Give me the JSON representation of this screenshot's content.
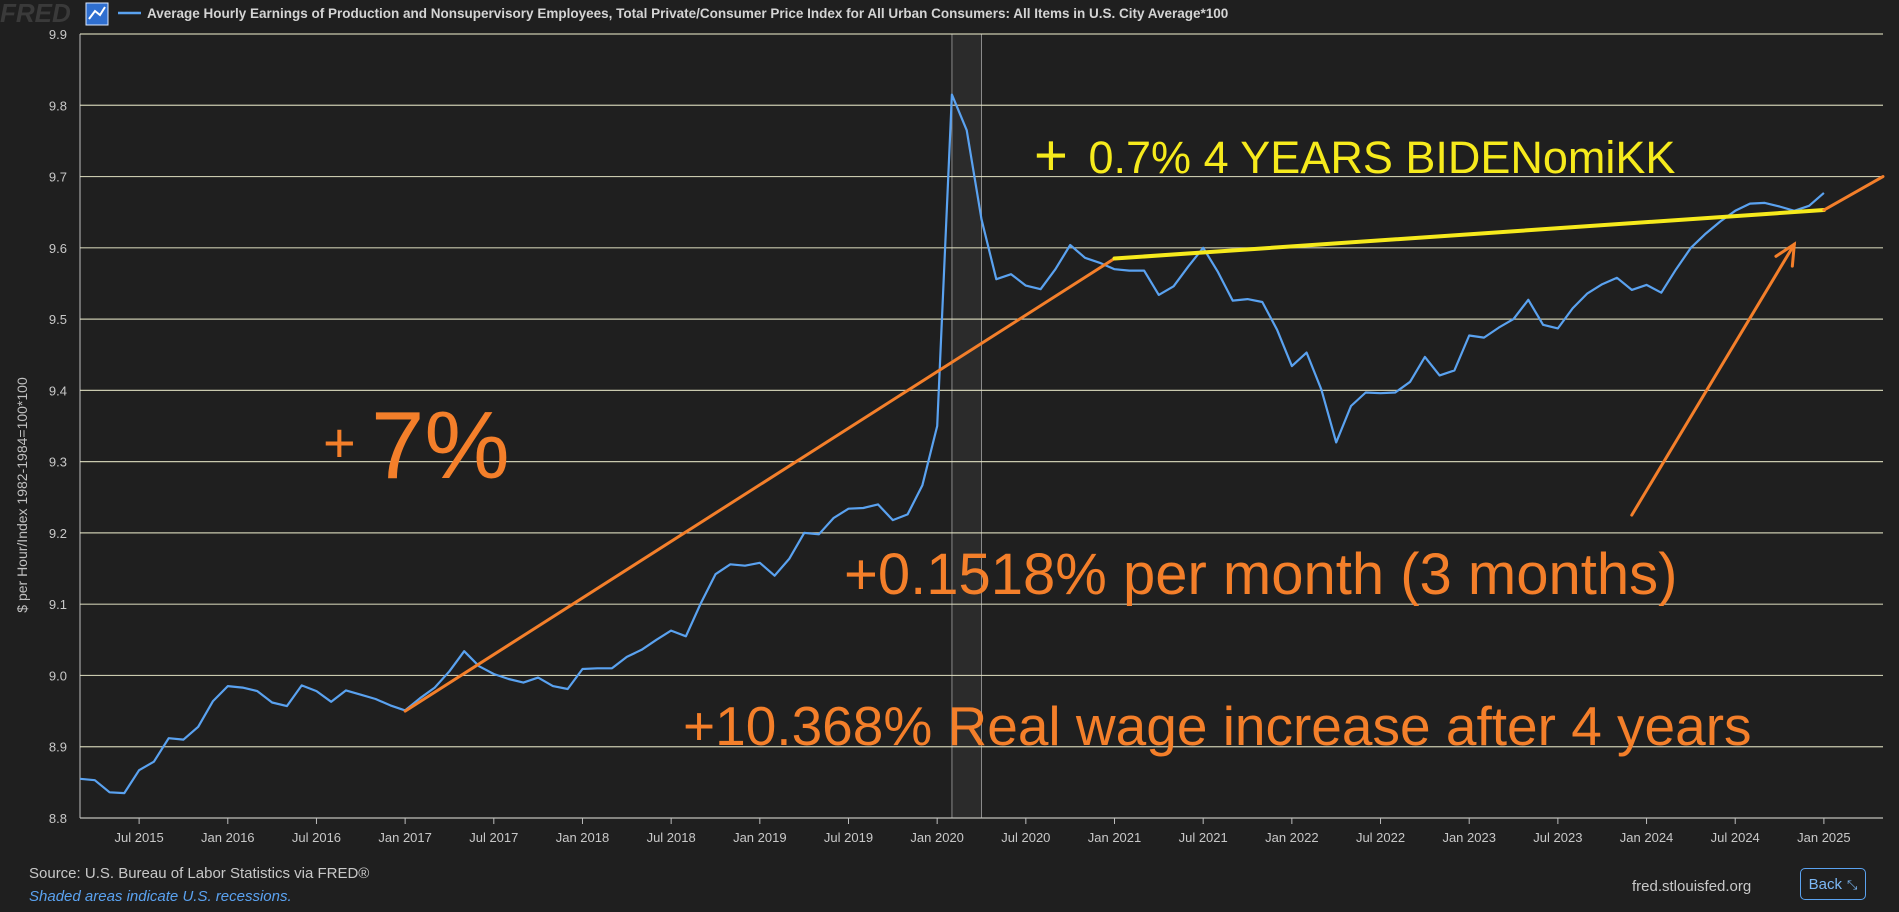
{
  "header": {
    "logo_text": "FRED",
    "logo_icon": "chart-line-icon",
    "series_title": "Average Hourly Earnings of Production and Nonsupervisory Employees, Total Private/Consumer Price Index for All Urban Consumers: All Items in U.S. City Average*100"
  },
  "footer": {
    "source": "Source: U.S. Bureau of Labor Statistics via FRED®",
    "recession_note": "Shaded areas indicate U.S. recessions.",
    "site": "fred.stlouisfed.org",
    "back_label": "Back",
    "back_icon": "collapse-icon"
  },
  "colors": {
    "background": "#1f1f1f",
    "series": "#5aa2f0",
    "grid": "#e8e8c8",
    "orange_annotation": "#f47f2a",
    "yellow_annotation": "#f6ea1c"
  },
  "chart_data": {
    "type": "line",
    "ylabel": "$ per Hour/Index 1982-1984=100*100",
    "xlabel": "",
    "ylim": [
      8.8,
      9.9
    ],
    "xlim": [
      "2015-03",
      "2025-05"
    ],
    "y_ticks": [
      "8.8",
      "8.9",
      "9.0",
      "9.1",
      "9.2",
      "9.3",
      "9.4",
      "9.5",
      "9.6",
      "9.7",
      "9.8",
      "9.9"
    ],
    "x_ticks": [
      {
        "label": "Jul 2015",
        "date": "2015-07"
      },
      {
        "label": "Jan 2016",
        "date": "2016-01"
      },
      {
        "label": "Jul 2016",
        "date": "2016-07"
      },
      {
        "label": "Jan 2017",
        "date": "2017-01"
      },
      {
        "label": "Jul 2017",
        "date": "2017-07"
      },
      {
        "label": "Jan 2018",
        "date": "2018-01"
      },
      {
        "label": "Jul 2018",
        "date": "2018-07"
      },
      {
        "label": "Jan 2019",
        "date": "2019-01"
      },
      {
        "label": "Jul 2019",
        "date": "2019-07"
      },
      {
        "label": "Jan 2020",
        "date": "2020-01"
      },
      {
        "label": "Jul 2020",
        "date": "2020-07"
      },
      {
        "label": "Jan 2021",
        "date": "2021-01"
      },
      {
        "label": "Jul 2021",
        "date": "2021-07"
      },
      {
        "label": "Jan 2022",
        "date": "2022-01"
      },
      {
        "label": "Jul 2022",
        "date": "2022-07"
      },
      {
        "label": "Jan 2023",
        "date": "2023-01"
      },
      {
        "label": "Jul 2023",
        "date": "2023-07"
      },
      {
        "label": "Jan 2024",
        "date": "2024-01"
      },
      {
        "label": "Jul 2024",
        "date": "2024-07"
      },
      {
        "label": "Jan 2025",
        "date": "2025-01"
      }
    ],
    "recession": {
      "start": "2020-02",
      "end": "2020-04"
    },
    "grid": true,
    "series": [
      {
        "x": [
          "2015-03",
          "2015-04",
          "2015-05",
          "2015-06",
          "2015-07",
          "2015-08",
          "2015-09",
          "2015-10",
          "2015-11",
          "2015-12",
          "2016-01",
          "2016-02",
          "2016-03",
          "2016-04",
          "2016-05",
          "2016-06",
          "2016-07",
          "2016-08",
          "2016-09",
          "2016-10",
          "2016-11",
          "2016-12",
          "2017-01",
          "2017-02",
          "2017-03",
          "2017-04",
          "2017-05",
          "2017-06",
          "2017-07",
          "2017-08",
          "2017-09",
          "2017-10",
          "2017-11",
          "2017-12",
          "2018-01",
          "2018-02",
          "2018-03",
          "2018-04",
          "2018-05",
          "2018-06",
          "2018-07",
          "2018-08",
          "2018-09",
          "2018-10",
          "2018-11",
          "2018-12",
          "2019-01",
          "2019-02",
          "2019-03",
          "2019-04",
          "2019-05",
          "2019-06",
          "2019-07",
          "2019-08",
          "2019-09",
          "2019-10",
          "2019-11",
          "2019-12",
          "2020-01",
          "2020-02",
          "2020-03",
          "2020-04",
          "2020-05",
          "2020-06",
          "2020-07",
          "2020-08",
          "2020-09",
          "2020-10",
          "2020-11",
          "2020-12",
          "2021-01",
          "2021-02",
          "2021-03",
          "2021-04",
          "2021-05",
          "2021-06",
          "2021-07",
          "2021-08",
          "2021-09",
          "2021-10",
          "2021-11",
          "2021-12",
          "2022-01",
          "2022-02",
          "2022-03",
          "2022-04",
          "2022-05",
          "2022-06",
          "2022-07",
          "2022-08",
          "2022-09",
          "2022-10",
          "2022-11",
          "2022-12",
          "2023-01",
          "2023-02",
          "2023-03",
          "2023-04",
          "2023-05",
          "2023-06",
          "2023-07",
          "2023-08",
          "2023-09",
          "2023-10",
          "2023-11",
          "2023-12",
          "2024-01",
          "2024-02",
          "2024-03",
          "2024-04",
          "2024-05",
          "2024-06",
          "2024-07",
          "2024-08",
          "2024-09",
          "2024-10",
          "2024-11",
          "2024-12",
          "2025-01"
        ],
        "values": [
          8.855,
          8.853,
          8.836,
          8.835,
          8.867,
          8.879,
          8.912,
          8.91,
          8.928,
          8.964,
          8.985,
          8.983,
          8.978,
          8.962,
          8.957,
          8.986,
          8.978,
          8.963,
          8.979,
          8.973,
          8.967,
          8.958,
          8.951,
          8.968,
          8.983,
          9.006,
          9.034,
          9.013,
          9.002,
          8.995,
          8.99,
          8.997,
          8.985,
          8.981,
          9.009,
          9.01,
          9.01,
          9.026,
          9.036,
          9.05,
          9.063,
          9.055,
          9.101,
          9.142,
          9.156,
          9.154,
          9.158,
          9.14,
          9.164,
          9.2,
          9.198,
          9.221,
          9.234,
          9.235,
          9.24,
          9.218,
          9.226,
          9.267,
          9.35,
          9.815,
          9.765,
          9.64,
          9.556,
          9.563,
          9.547,
          9.542,
          9.57,
          9.604,
          9.586,
          9.579,
          9.57,
          9.568,
          9.568,
          9.534,
          9.546,
          9.574,
          9.6,
          9.566,
          9.526,
          9.528,
          9.524,
          9.485,
          9.434,
          9.453,
          9.401,
          9.327,
          9.378,
          9.397,
          9.396,
          9.397,
          9.412,
          9.447,
          9.421,
          9.428,
          9.477,
          9.474,
          9.488,
          9.5,
          9.527,
          9.492,
          9.487,
          9.515,
          9.536,
          9.549,
          9.558,
          9.541,
          9.548,
          9.537,
          9.57,
          9.6,
          9.62,
          9.637,
          9.652,
          9.662,
          9.663,
          9.658,
          9.652,
          9.659,
          9.677
        ]
      }
    ],
    "annotations": [
      {
        "text_pre": "+",
        "text_main": "7%",
        "color": "#f47f2a"
      },
      {
        "text_pre": "+",
        "text_main": " 0.7% 4 YEARS BIDENomiKK",
        "color": "#f6ea1c"
      },
      {
        "text": "+0.1518% per month (3 months)",
        "color": "#f47f2a"
      },
      {
        "text": "+10.368% Real wage increase after 4 years",
        "color": "#f47f2a"
      }
    ],
    "drawn_lines": [
      {
        "name": "orange-trend-line",
        "color": "#f47f2a",
        "from": {
          "x": "2017-01",
          "y": 8.95
        },
        "to": {
          "x": "2021-01",
          "y": 9.585
        }
      },
      {
        "name": "yellow-trend-line",
        "color": "#f6ea1c",
        "from": {
          "x": "2021-01",
          "y": 9.585
        },
        "to": {
          "x": "2025-01",
          "y": 9.653
        }
      },
      {
        "name": "orange-extension-line",
        "color": "#f47f2a",
        "from": {
          "x": "2025-01",
          "y": 9.653
        },
        "to": {
          "x": "2025-05",
          "y": 9.7
        }
      },
      {
        "name": "orange-arrow",
        "color": "#f47f2a",
        "from": {
          "x": "2023-12",
          "y": 9.225
        },
        "to": {
          "x": "2024-11",
          "y": 9.605
        }
      }
    ]
  }
}
